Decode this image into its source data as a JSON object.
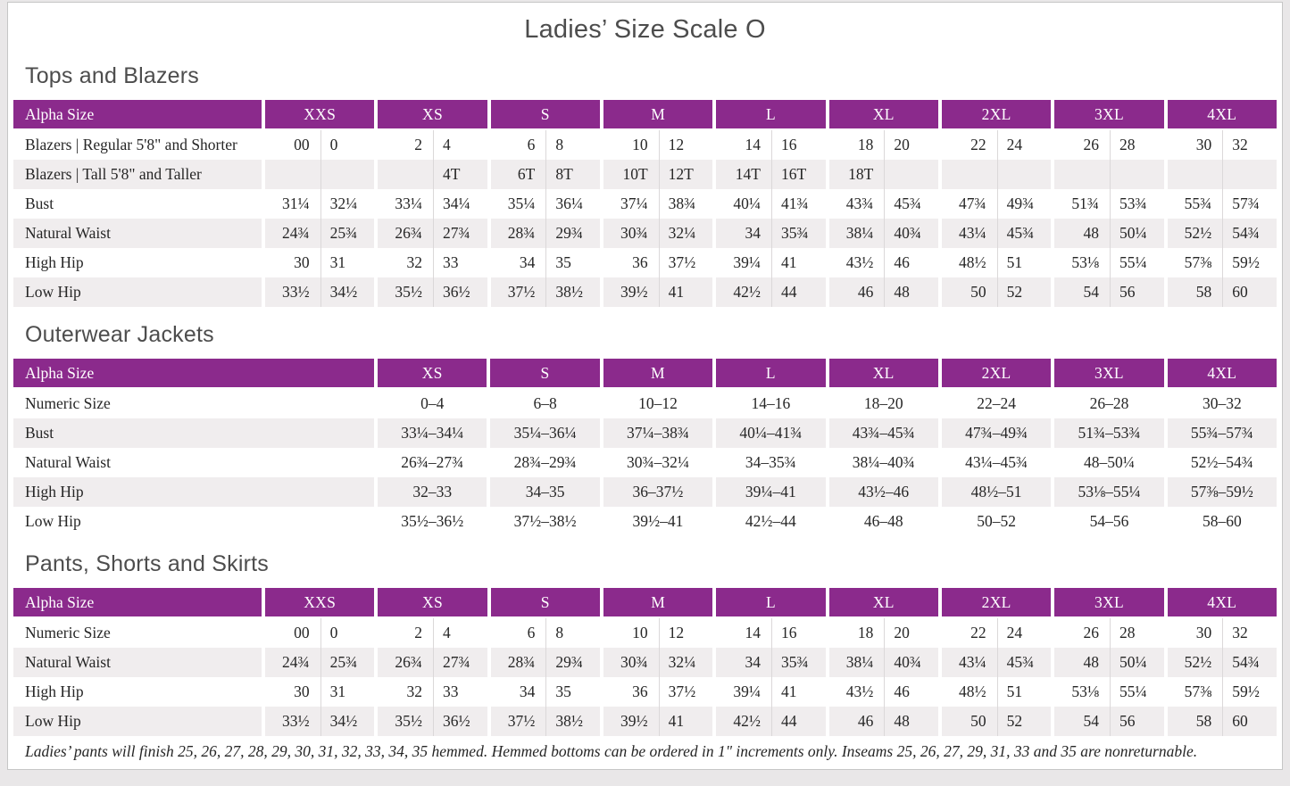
{
  "page": {
    "title": "Ladies’ Size Scale O",
    "footnote": "Ladies’ pants will finish 25, 26, 27, 28, 29, 30, 31, 32, 33, 34, 35 hemmed. Hemmed bottoms can be ordered in 1\" increments only. Inseams 25, 26, 27, 29, 31, 33 and 35 are nonreturnable."
  },
  "colors": {
    "purple": "#8B2A8C",
    "row_stripe": "#F0EDEE",
    "text": "#262626",
    "heading_gray": "#4D4D4D"
  },
  "tables": [
    {
      "id": "tops-and-blazers",
      "heading": "Tops and Blazers",
      "header_label": "Alpha Size",
      "sizes": [
        "XXS",
        "XS",
        "S",
        "M",
        "L",
        "XL",
        "2XL",
        "3XL",
        "4XL"
      ],
      "rows": [
        {
          "label": "Blazers | Regular 5'8\" and Shorter",
          "cells": [
            "00",
            "0",
            "2",
            "4",
            "6",
            "8",
            "10",
            "12",
            "14",
            "16",
            "18",
            "20",
            "22",
            "24",
            "26",
            "28",
            "30",
            "32"
          ]
        },
        {
          "label": "Blazers | Tall 5'8\" and Taller",
          "cells": [
            "",
            "",
            "",
            "4T",
            "6T",
            "8T",
            "10T",
            "12T",
            "14T",
            "16T",
            "18T",
            "",
            "",
            "",
            "",
            "",
            "",
            ""
          ]
        },
        {
          "label": "Bust",
          "cells": [
            "31¼",
            "32¼",
            "33¼",
            "34¼",
            "35¼",
            "36¼",
            "37¼",
            "38¾",
            "40¼",
            "41¾",
            "43¾",
            "45¾",
            "47¾",
            "49¾",
            "51¾",
            "53¾",
            "55¾",
            "57¾"
          ]
        },
        {
          "label": "Natural Waist",
          "cells": [
            "24¾",
            "25¾",
            "26¾",
            "27¾",
            "28¾",
            "29¾",
            "30¾",
            "32¼",
            "34",
            "35¾",
            "38¼",
            "40¾",
            "43¼",
            "45¾",
            "48",
            "50¼",
            "52½",
            "54¾"
          ]
        },
        {
          "label": "High Hip",
          "cells": [
            "30",
            "31",
            "32",
            "33",
            "34",
            "35",
            "36",
            "37½",
            "39¼",
            "41",
            "43½",
            "46",
            "48½",
            "51",
            "53⅛",
            "55¼",
            "57⅜",
            "59½"
          ]
        },
        {
          "label": "Low Hip",
          "cells": [
            "33½",
            "34½",
            "35½",
            "36½",
            "37½",
            "38½",
            "39½",
            "41",
            "42½",
            "44",
            "46",
            "48",
            "50",
            "52",
            "54",
            "56",
            "58",
            "60"
          ]
        }
      ]
    },
    {
      "id": "outerwear-jackets",
      "heading": "Outerwear Jackets",
      "header_label": "Alpha Size",
      "sizes": [
        "XS",
        "S",
        "M",
        "L",
        "XL",
        "2XL",
        "3XL",
        "4XL"
      ],
      "rows": [
        {
          "label": "Numeric Size",
          "cells": [
            "0–4",
            "6–8",
            "10–12",
            "14–16",
            "18–20",
            "22–24",
            "26–28",
            "30–32"
          ]
        },
        {
          "label": "Bust",
          "cells": [
            "33¼–34¼",
            "35¼–36¼",
            "37¼–38¾",
            "40¼–41¾",
            "43¾–45¾",
            "47¾–49¾",
            "51¾–53¾",
            "55¾–57¾"
          ]
        },
        {
          "label": "Natural Waist",
          "cells": [
            "26¾–27¾",
            "28¾–29¾",
            "30¾–32¼",
            "34–35¾",
            "38¼–40¾",
            "43¼–45¾",
            "48–50¼",
            "52½–54¾"
          ]
        },
        {
          "label": "High Hip",
          "cells": [
            "32–33",
            "34–35",
            "36–37½",
            "39¼–41",
            "43½–46",
            "48½–51",
            "53⅛–55¼",
            "57⅜–59½"
          ]
        },
        {
          "label": "Low Hip",
          "cells": [
            "35½–36½",
            "37½–38½",
            "39½–41",
            "42½–44",
            "46–48",
            "50–52",
            "54–56",
            "58–60"
          ]
        }
      ]
    },
    {
      "id": "pants-shorts-skirts",
      "heading": "Pants, Shorts and Skirts",
      "header_label": "Alpha Size",
      "sizes": [
        "XXS",
        "XS",
        "S",
        "M",
        "L",
        "XL",
        "2XL",
        "3XL",
        "4XL"
      ],
      "rows": [
        {
          "label": "Numeric Size",
          "cells": [
            "00",
            "0",
            "2",
            "4",
            "6",
            "8",
            "10",
            "12",
            "14",
            "16",
            "18",
            "20",
            "22",
            "24",
            "26",
            "28",
            "30",
            "32"
          ]
        },
        {
          "label": "Natural Waist",
          "cells": [
            "24¾",
            "25¾",
            "26¾",
            "27¾",
            "28¾",
            "29¾",
            "30¾",
            "32¼",
            "34",
            "35¾",
            "38¼",
            "40¾",
            "43¼",
            "45¾",
            "48",
            "50¼",
            "52½",
            "54¾"
          ]
        },
        {
          "label": "High Hip",
          "cells": [
            "30",
            "31",
            "32",
            "33",
            "34",
            "35",
            "36",
            "37½",
            "39¼",
            "41",
            "43½",
            "46",
            "48½",
            "51",
            "53⅛",
            "55¼",
            "57⅜",
            "59½"
          ]
        },
        {
          "label": "Low Hip",
          "cells": [
            "33½",
            "34½",
            "35½",
            "36½",
            "37½",
            "38½",
            "39½",
            "41",
            "42½",
            "44",
            "46",
            "48",
            "50",
            "52",
            "54",
            "56",
            "58",
            "60"
          ]
        }
      ]
    }
  ]
}
